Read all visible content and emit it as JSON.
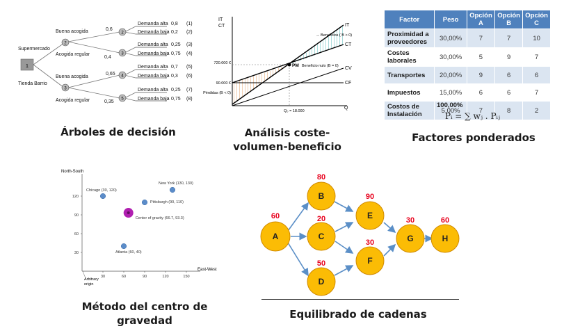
{
  "decision_tree": {
    "root_label": "1",
    "options": [
      "Supermercado",
      "Tienda Barrio"
    ],
    "branches": [
      {
        "label": "Buena acogida",
        "prob": "0,6",
        "node": "2",
        "outcomes": [
          {
            "label": "Demanda alta",
            "value": "0,8",
            "id": "(1)"
          },
          {
            "label": "Demanda baja",
            "value": "0,2",
            "id": "(2)"
          }
        ]
      },
      {
        "label": "Acogida regular",
        "prob": "0,4",
        "node": "3",
        "outcomes": [
          {
            "label": "Demanda alta",
            "value": "0,25",
            "id": "(3)"
          },
          {
            "label": "Demanda baja",
            "value": "0,75",
            "id": "(4)"
          }
        ]
      },
      {
        "label": "Buena acogida",
        "prob": "0,65",
        "node": "4",
        "outcomes": [
          {
            "label": "Demanda alta",
            "value": "0,7",
            "id": "(5)"
          },
          {
            "label": "Demanda baja",
            "value": "0,3",
            "id": "(6)"
          }
        ]
      },
      {
        "label": "Acogida regular",
        "prob": "0,35",
        "node": "5",
        "outcomes": [
          {
            "label": "Demanda alta",
            "value": "0,25",
            "id": "(7)"
          },
          {
            "label": "Demanda baja",
            "value": "0,75",
            "id": "(8)"
          }
        ]
      }
    ],
    "mid_nodes": [
      "2",
      "3"
    ],
    "caption": "Árboles de decisión"
  },
  "cvb": {
    "y_axis_label_1": "IT",
    "y_axis_label_2": "CT",
    "x_axis_label": "Q",
    "lines": [
      "IT",
      "CT",
      "CV",
      "CF"
    ],
    "tick_720": "720.000 €",
    "tick_90": "90.000 €",
    "losses_label": "Pérdidas (B < 0)",
    "profit_label": "→ Beneficios ( B > 0)",
    "pm_label": "PM",
    "null_label": "Beneficio nulo (B = 0)",
    "q_label": "Q₀ = 18.000",
    "caption_line1": "Análisis coste-",
    "caption_line2": "volumen-beneficio"
  },
  "factors": {
    "headers": [
      "Factor",
      "Peso",
      "Opción A",
      "Opción B",
      "Opción C"
    ],
    "rows": [
      [
        "Proximidad a proveedores",
        "30,00%",
        "7",
        "7",
        "10"
      ],
      [
        "Costes laborales",
        "30,00%",
        "5",
        "9",
        "7"
      ],
      [
        "Transportes",
        "20,00%",
        "9",
        "6",
        "6"
      ],
      [
        "Impuestos",
        "15,00%",
        "6",
        "6",
        "7"
      ],
      [
        "Costos de Instalación",
        "5,00%",
        "7",
        "8",
        "2"
      ]
    ],
    "total": "100,00%",
    "formula": "Pᵢ = ∑ wⱼ . Pᵢⱼ",
    "caption": "Factores ponderados"
  },
  "gravity": {
    "y_label": "North-South",
    "x_label": "East-West",
    "origin_label_1": "Arbitrary",
    "origin_label_2": "origin",
    "colors": {
      "point": "#5b8cc9",
      "center": "#b01fb0"
    },
    "chart_data": {
      "type": "scatter",
      "xlabel": "East-West",
      "ylabel": "North-South",
      "xlim": [
        0,
        165
      ],
      "ylim": [
        0,
        150
      ],
      "xticks": [
        30,
        60,
        90,
        120,
        150
      ],
      "yticks": [
        30,
        60,
        90,
        120
      ],
      "points": [
        {
          "name": "Chicago (30, 120)",
          "x": 30,
          "y": 120
        },
        {
          "name": "New York (130, 130)",
          "x": 130,
          "y": 130
        },
        {
          "name": "Pittsburgh (90, 110)",
          "x": 90,
          "y": 110
        },
        {
          "name": "Atlanta (60, 40)",
          "x": 60,
          "y": 40
        }
      ],
      "center": {
        "name": "Center of gravity (66.7, 93.3)",
        "x": 66.7,
        "y": 93.3
      }
    },
    "caption_line1": "Método del centro de",
    "caption_line2": "gravedad"
  },
  "chains": {
    "nodes": [
      {
        "id": "A",
        "time": "60"
      },
      {
        "id": "B",
        "time": "80"
      },
      {
        "id": "C",
        "time": "20"
      },
      {
        "id": "D",
        "time": "50"
      },
      {
        "id": "E",
        "time": "90"
      },
      {
        "id": "F",
        "time": "30"
      },
      {
        "id": "G",
        "time": "30"
      },
      {
        "id": "H",
        "time": "60"
      }
    ],
    "colors": {
      "node": "#fbbc05",
      "stroke": "#d08a00",
      "time": "#e8001c",
      "edge": "#5b8fc7"
    },
    "caption": "Equilibrado de cadenas"
  }
}
